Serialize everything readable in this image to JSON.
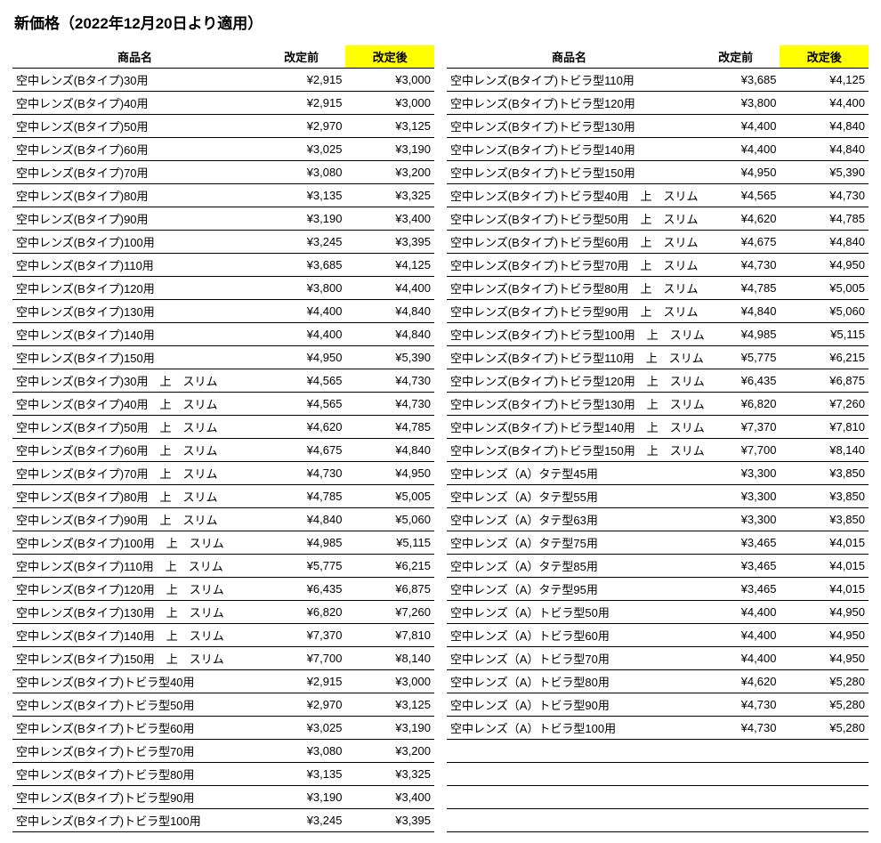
{
  "title": "新価格（2022年12月20日より適用）",
  "headers": {
    "name": "商品名",
    "before": "改定前",
    "after": "改定後"
  },
  "highlight_color": "#ffff00",
  "left": [
    {
      "name": "空中レンズ(Bタイプ)30用",
      "before": "¥2,915",
      "after": "¥3,000"
    },
    {
      "name": "空中レンズ(Bタイプ)40用",
      "before": "¥2,915",
      "after": "¥3,000"
    },
    {
      "name": "空中レンズ(Bタイプ)50用",
      "before": "¥2,970",
      "after": "¥3,125"
    },
    {
      "name": "空中レンズ(Bタイプ)60用",
      "before": "¥3,025",
      "after": "¥3,190"
    },
    {
      "name": "空中レンズ(Bタイプ)70用",
      "before": "¥3,080",
      "after": "¥3,200"
    },
    {
      "name": "空中レンズ(Bタイプ)80用",
      "before": "¥3,135",
      "after": "¥3,325"
    },
    {
      "name": "空中レンズ(Bタイプ)90用",
      "before": "¥3,190",
      "after": "¥3,400"
    },
    {
      "name": "空中レンズ(Bタイプ)100用",
      "before": "¥3,245",
      "after": "¥3,395"
    },
    {
      "name": "空中レンズ(Bタイプ)110用",
      "before": "¥3,685",
      "after": "¥4,125"
    },
    {
      "name": "空中レンズ(Bタイプ)120用",
      "before": "¥3,800",
      "after": "¥4,400"
    },
    {
      "name": "空中レンズ(Bタイプ)130用",
      "before": "¥4,400",
      "after": "¥4,840"
    },
    {
      "name": "空中レンズ(Bタイプ)140用",
      "before": "¥4,400",
      "after": "¥4,840"
    },
    {
      "name": "空中レンズ(Bタイプ)150用",
      "before": "¥4,950",
      "after": "¥5,390"
    },
    {
      "name": "空中レンズ(Bタイプ)30用　上　スリム",
      "before": "¥4,565",
      "after": "¥4,730"
    },
    {
      "name": "空中レンズ(Bタイプ)40用　上　スリム",
      "before": "¥4,565",
      "after": "¥4,730"
    },
    {
      "name": "空中レンズ(Bタイプ)50用　上　スリム",
      "before": "¥4,620",
      "after": "¥4,785"
    },
    {
      "name": "空中レンズ(Bタイプ)60用　上　スリム",
      "before": "¥4,675",
      "after": "¥4,840"
    },
    {
      "name": "空中レンズ(Bタイプ)70用　上　スリム",
      "before": "¥4,730",
      "after": "¥4,950"
    },
    {
      "name": "空中レンズ(Bタイプ)80用　上　スリム",
      "before": "¥4,785",
      "after": "¥5,005"
    },
    {
      "name": "空中レンズ(Bタイプ)90用　上　スリム",
      "before": "¥4,840",
      "after": "¥5,060"
    },
    {
      "name": "空中レンズ(Bタイプ)100用　上　スリム",
      "before": "¥4,985",
      "after": "¥5,115"
    },
    {
      "name": "空中レンズ(Bタイプ)110用　上　スリム",
      "before": "¥5,775",
      "after": "¥6,215"
    },
    {
      "name": "空中レンズ(Bタイプ)120用　上　スリム",
      "before": "¥6,435",
      "after": "¥6,875"
    },
    {
      "name": "空中レンズ(Bタイプ)130用　上　スリム",
      "before": "¥6,820",
      "after": "¥7,260"
    },
    {
      "name": "空中レンズ(Bタイプ)140用　上　スリム",
      "before": "¥7,370",
      "after": "¥7,810"
    },
    {
      "name": "空中レンズ(Bタイプ)150用　上　スリム",
      "before": "¥7,700",
      "after": "¥8,140"
    },
    {
      "name": "空中レンズ(Bタイプ)トビラ型40用",
      "before": "¥2,915",
      "after": "¥3,000"
    },
    {
      "name": "空中レンズ(Bタイプ)トビラ型50用",
      "before": "¥2,970",
      "after": "¥3,125"
    },
    {
      "name": "空中レンズ(Bタイプ)トビラ型60用",
      "before": "¥3,025",
      "after": "¥3,190"
    },
    {
      "name": "空中レンズ(Bタイプ)トビラ型70用",
      "before": "¥3,080",
      "after": "¥3,200"
    },
    {
      "name": "空中レンズ(Bタイプ)トビラ型80用",
      "before": "¥3,135",
      "after": "¥3,325"
    },
    {
      "name": "空中レンズ(Bタイプ)トビラ型90用",
      "before": "¥3,190",
      "after": "¥3,400"
    },
    {
      "name": "空中レンズ(Bタイプ)トビラ型100用",
      "before": "¥3,245",
      "after": "¥3,395"
    }
  ],
  "right": [
    {
      "name": "空中レンズ(Bタイプ)トビラ型110用",
      "before": "¥3,685",
      "after": "¥4,125"
    },
    {
      "name": "空中レンズ(Bタイプ)トビラ型120用",
      "before": "¥3,800",
      "after": "¥4,400"
    },
    {
      "name": "空中レンズ(Bタイプ)トビラ型130用",
      "before": "¥4,400",
      "after": "¥4,840"
    },
    {
      "name": "空中レンズ(Bタイプ)トビラ型140用",
      "before": "¥4,400",
      "after": "¥4,840"
    },
    {
      "name": "空中レンズ(Bタイプ)トビラ型150用",
      "before": "¥4,950",
      "after": "¥5,390"
    },
    {
      "name": "空中レンズ(Bタイプ)トビラ型40用　上　スリム",
      "before": "¥4,565",
      "after": "¥4,730"
    },
    {
      "name": "空中レンズ(Bタイプ)トビラ型50用　上　スリム",
      "before": "¥4,620",
      "after": "¥4,785"
    },
    {
      "name": "空中レンズ(Bタイプ)トビラ型60用　上　スリム",
      "before": "¥4,675",
      "after": "¥4,840"
    },
    {
      "name": "空中レンズ(Bタイプ)トビラ型70用　上　スリム",
      "before": "¥4,730",
      "after": "¥4,950"
    },
    {
      "name": "空中レンズ(Bタイプ)トビラ型80用　上　スリム",
      "before": "¥4,785",
      "after": "¥5,005"
    },
    {
      "name": "空中レンズ(Bタイプ)トビラ型90用　上　スリム",
      "before": "¥4,840",
      "after": "¥5,060"
    },
    {
      "name": "空中レンズ(Bタイプ)トビラ型100用　上　スリム",
      "before": "¥4,985",
      "after": "¥5,115"
    },
    {
      "name": "空中レンズ(Bタイプ)トビラ型110用　上　スリム",
      "before": "¥5,775",
      "after": "¥6,215"
    },
    {
      "name": "空中レンズ(Bタイプ)トビラ型120用　上　スリム",
      "before": "¥6,435",
      "after": "¥6,875"
    },
    {
      "name": "空中レンズ(Bタイプ)トビラ型130用　上　スリム",
      "before": "¥6,820",
      "after": "¥7,260"
    },
    {
      "name": "空中レンズ(Bタイプ)トビラ型140用　上　スリム",
      "before": "¥7,370",
      "after": "¥7,810"
    },
    {
      "name": "空中レンズ(Bタイプ)トビラ型150用　上　スリム",
      "before": "¥7,700",
      "after": "¥8,140"
    },
    {
      "name": "空中レンズ（A）タテ型45用",
      "before": "¥3,300",
      "after": "¥3,850"
    },
    {
      "name": "空中レンズ（A）タテ型55用",
      "before": "¥3,300",
      "after": "¥3,850"
    },
    {
      "name": "空中レンズ（A）タテ型63用",
      "before": "¥3,300",
      "after": "¥3,850"
    },
    {
      "name": "空中レンズ（A）タテ型75用",
      "before": "¥3,465",
      "after": "¥4,015"
    },
    {
      "name": "空中レンズ（A）タテ型85用",
      "before": "¥3,465",
      "after": "¥4,015"
    },
    {
      "name": "空中レンズ（A）タテ型95用",
      "before": "¥3,465",
      "after": "¥4,015"
    },
    {
      "name": "空中レンズ（A）トビラ型50用",
      "before": "¥4,400",
      "after": "¥4,950"
    },
    {
      "name": "空中レンズ（A）トビラ型60用",
      "before": "¥4,400",
      "after": "¥4,950"
    },
    {
      "name": "空中レンズ（A）トビラ型70用",
      "before": "¥4,400",
      "after": "¥4,950"
    },
    {
      "name": "空中レンズ（A）トビラ型80用",
      "before": "¥4,620",
      "after": "¥5,280"
    },
    {
      "name": "空中レンズ（A）トビラ型90用",
      "before": "¥4,730",
      "after": "¥5,280"
    },
    {
      "name": "空中レンズ（A）トビラ型100用",
      "before": "¥4,730",
      "after": "¥5,280"
    }
  ],
  "right_empty_rows": 4
}
